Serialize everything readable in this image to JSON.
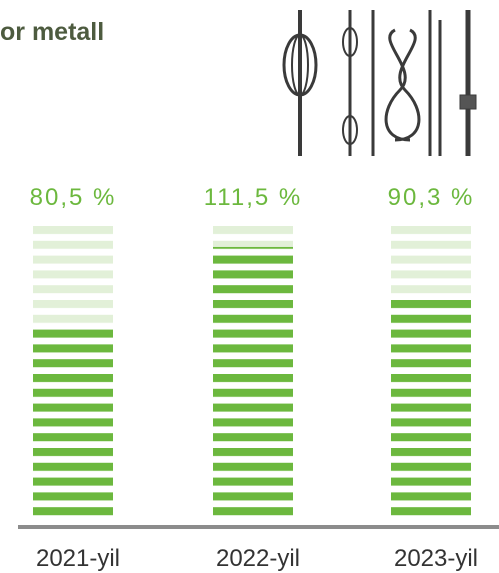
{
  "chart_data": {
    "type": "bar",
    "title": "or metall",
    "categories": [
      "2021-yil",
      "2022-yil",
      "2023-yil"
    ],
    "values": [
      80.5,
      111.5,
      90.3
    ],
    "value_labels": [
      "80,5 %",
      "111,5 %",
      "90,3 %"
    ],
    "color": "#6cb83e",
    "ylim": [
      0,
      120
    ]
  }
}
